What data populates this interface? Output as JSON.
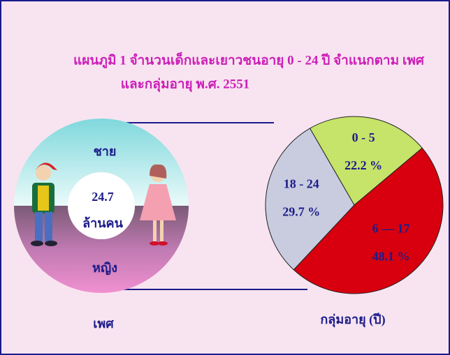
{
  "title": [
    "แผนภูมิ  1  จำนวนเด็กและเยาวชนอายุ 0 - 24 ปี จำแนกตาม เพศ",
    "และกลุ่มอายุ พ.ศ. 2551"
  ],
  "chart_data": [
    {
      "type": "donut",
      "categories": [
        "ชาย",
        "หญิง"
      ],
      "center_value": 24.7,
      "center_unit": "ล้านคน",
      "xlabel": "เพศ"
    },
    {
      "type": "pie",
      "categories": [
        "0 - 5",
        "6 — 17",
        "18 - 24"
      ],
      "values": [
        22.2,
        48.1,
        29.7
      ],
      "value_labels": [
        "22.2 %",
        "48.1 %",
        "29.7 %"
      ],
      "colors": [
        "#c6e36a",
        "#d8000e",
        "#c9ccdf"
      ],
      "xlabel": "กลุ่มอายุ (ปี)"
    }
  ]
}
